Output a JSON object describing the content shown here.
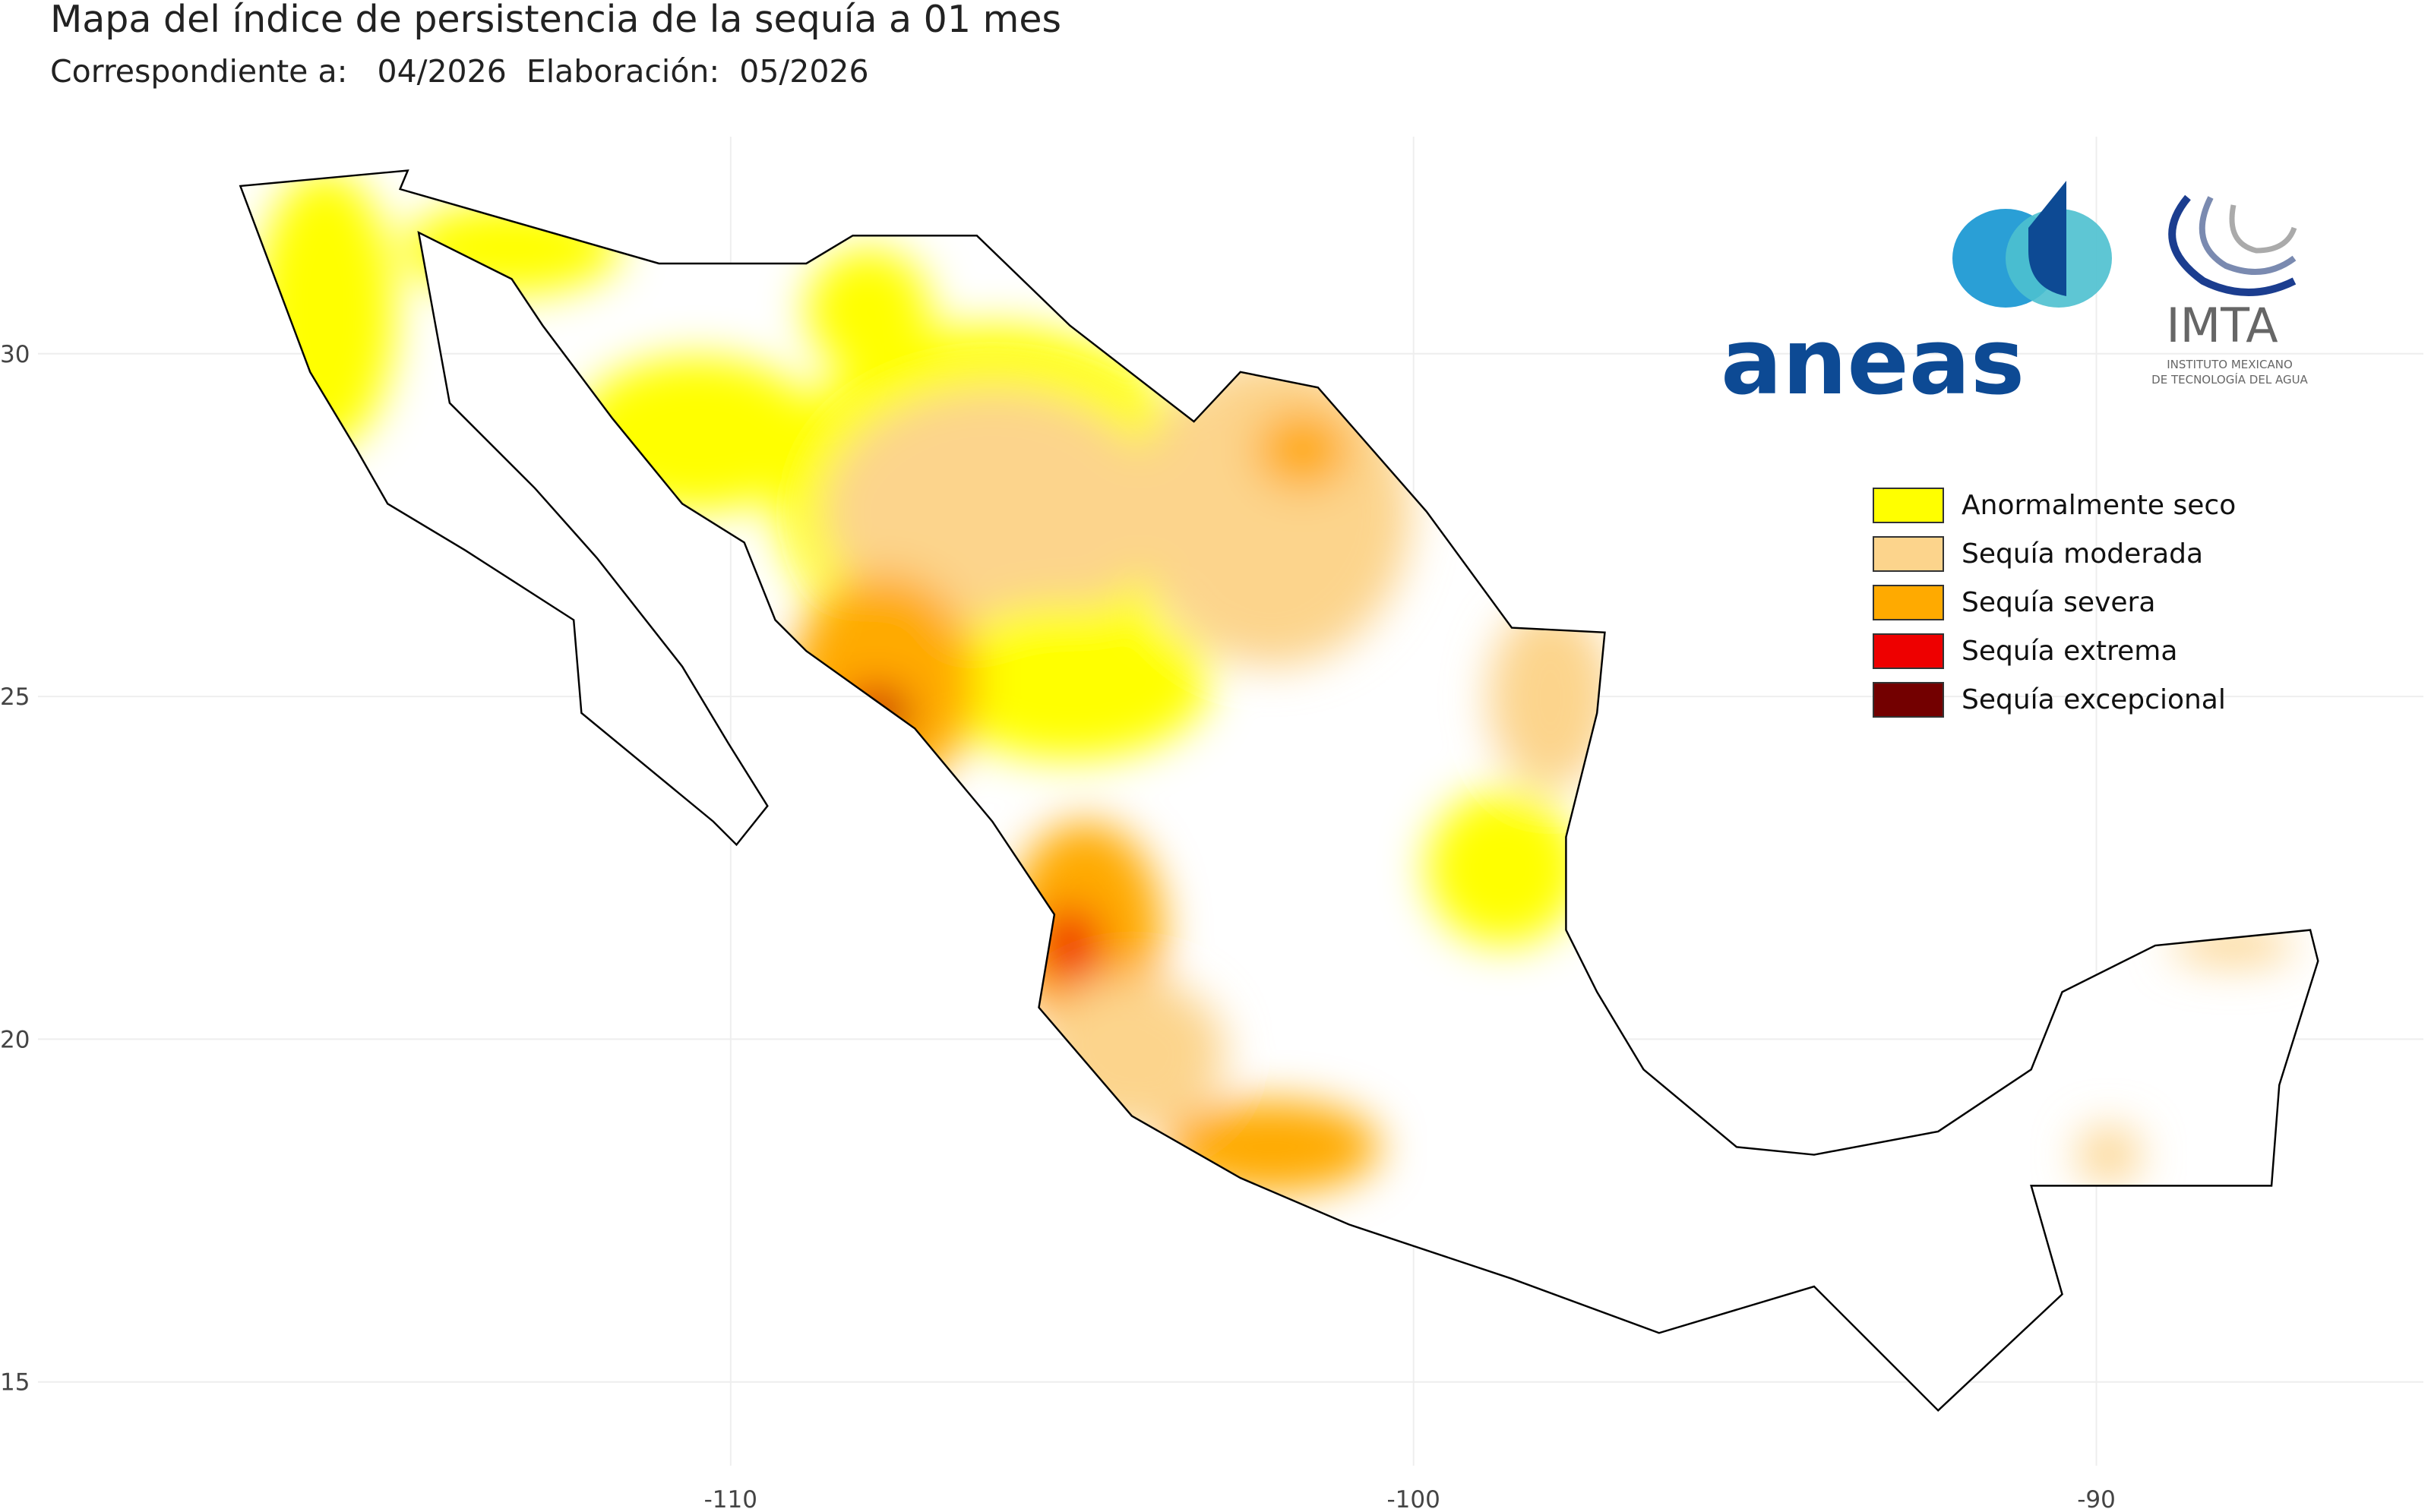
{
  "header": {
    "title": "Mapa del índice de persistencia de la sequía a  01 mes",
    "subtitle": "Correspondiente a:   04/2026  Elaboración:  05/2026"
  },
  "map": {
    "xlim": [
      -120.7,
      -85.1
    ],
    "ylim": [
      13.9,
      32.9
    ],
    "xticks": [
      -110,
      -100,
      -90
    ],
    "yticks": [
      30,
      25,
      20,
      15
    ],
    "legend": [
      {
        "label": "Anormalmente seco",
        "color": "#ffff00"
      },
      {
        "label": "Sequía moderada",
        "color": "#fcd48c"
      },
      {
        "label": "Sequía severa",
        "color": "#ffaa00"
      },
      {
        "label": "Sequía extrema",
        "color": "#ee0000"
      },
      {
        "label": "Sequía excepcional",
        "color": "#730000"
      }
    ]
  },
  "logos": {
    "aneas": "aneas",
    "imta": "IMTA",
    "imta_line1": "INSTITUTO MEXICANO",
    "imta_line2": "DE TECNOLOGÍA DEL AGUA"
  }
}
